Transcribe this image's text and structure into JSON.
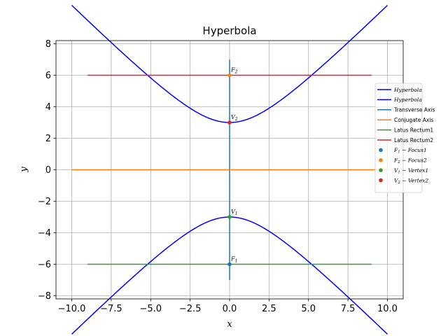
{
  "chart_data": {
    "type": "line",
    "title": "Hyperbola",
    "xlabel": "x",
    "ylabel": "y",
    "xlim": [
      -11,
      11
    ],
    "ylim": [
      -8.2,
      8.2
    ],
    "xticks": [
      -10,
      -7.5,
      -5,
      -2.5,
      0,
      2.5,
      5,
      7.5,
      10
    ],
    "xtick_labels": [
      "−10.0",
      "−7.5",
      "−5.0",
      "−2.5",
      "0.0",
      "2.5",
      "5.0",
      "7.5",
      "10.0"
    ],
    "yticks": [
      -8,
      -6,
      -4,
      -2,
      0,
      2,
      4,
      6,
      8
    ],
    "ytick_labels": [
      "−8",
      "−6",
      "−4",
      "−2",
      "0",
      "2",
      "4",
      "6",
      "8"
    ],
    "grid": true,
    "legend_position": "right",
    "hyperbola": {
      "a": 3,
      "b": 3,
      "x_range": [
        -10,
        10
      ]
    },
    "series": [
      {
        "name": "Hyperbola",
        "kind": "curve",
        "branch": "upper",
        "color": "#0000ff"
      },
      {
        "name": "Hyperbola",
        "kind": "curve",
        "branch": "lower",
        "color": "#0000ff"
      },
      {
        "name": "Transverse Axis",
        "kind": "segment",
        "x": [
          0,
          0
        ],
        "y": [
          -7,
          7
        ],
        "color": "#1f77b4"
      },
      {
        "name": "Conjugate Axis",
        "kind": "segment",
        "x": [
          -10,
          10
        ],
        "y": [
          0,
          0
        ],
        "color": "#ff7f0e"
      },
      {
        "name": "Latus Rectum1",
        "kind": "segment",
        "x": [
          -9,
          9
        ],
        "y": [
          -6,
          -6
        ],
        "color": "#2ca02c"
      },
      {
        "name": "Latus Rectum2",
        "kind": "segment",
        "x": [
          -9,
          9
        ],
        "y": [
          6,
          6
        ],
        "color": "#d62728"
      }
    ],
    "points": [
      {
        "name": "F_1 − Focus1",
        "legend_main": "F",
        "legend_sub": "1",
        "legend_rest": " − Focus1",
        "x": 0,
        "y": -6,
        "color": "#1f77b4",
        "label": "F",
        "sub": "1"
      },
      {
        "name": "F_2 − Focus2",
        "legend_main": "F",
        "legend_sub": "2",
        "legend_rest": " − Focus2",
        "x": 0,
        "y": 6,
        "color": "#ff7f0e",
        "label": "F",
        "sub": "2"
      },
      {
        "name": "V_1 − Vertex1",
        "legend_main": "V",
        "legend_sub": "1",
        "legend_rest": " − Vertex1",
        "x": 0,
        "y": -3,
        "color": "#2ca02c",
        "label": "V",
        "sub": "1"
      },
      {
        "name": "V_2 − Vertex2",
        "legend_main": "V",
        "legend_sub": "2",
        "legend_rest": " − Vertex2",
        "x": 0,
        "y": 3,
        "color": "#d62728",
        "label": "V",
        "sub": "2"
      }
    ]
  }
}
